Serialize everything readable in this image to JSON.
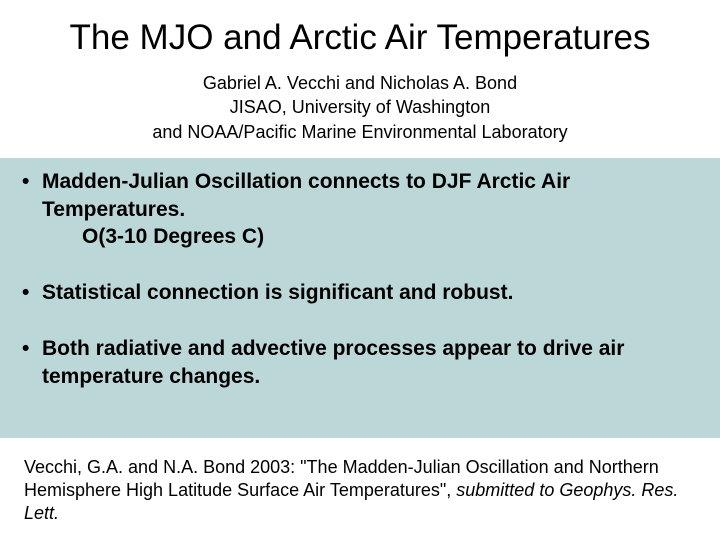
{
  "colors": {
    "background": "#ffffff",
    "highlight_box": "#bcd7d7",
    "text": "#000000"
  },
  "title": {
    "text": "The MJO and Arctic Air Temperatures",
    "fontsize": 35,
    "weight": 400
  },
  "authors": {
    "line1": "Gabriel A. Vecchi and Nicholas A. Bond",
    "line2": "JISAO, University of Washington",
    "line3": "and NOAA/Pacific Marine Environmental Laboratory",
    "fontsize": 18
  },
  "bullets": {
    "fontsize": 21,
    "weight": "bold",
    "items": [
      {
        "main": "Madden-Julian Oscillation connects to DJF Arctic Air Temperatures.",
        "sub": "O(3-10 Degrees C)"
      },
      {
        "main": "Statistical connection is significant and robust."
      },
      {
        "main": "Both radiative and advective processes appear to drive air temperature changes."
      }
    ]
  },
  "citation": {
    "prefix": "Vecchi, G.A. and N.A. Bond 2003: \"The Madden-Julian Oscillation and Northern Hemisphere High Latitude Surface Air Temperatures\", ",
    "italic": "submitted to Geophys. Res. Lett.",
    "fontsize": 18
  }
}
